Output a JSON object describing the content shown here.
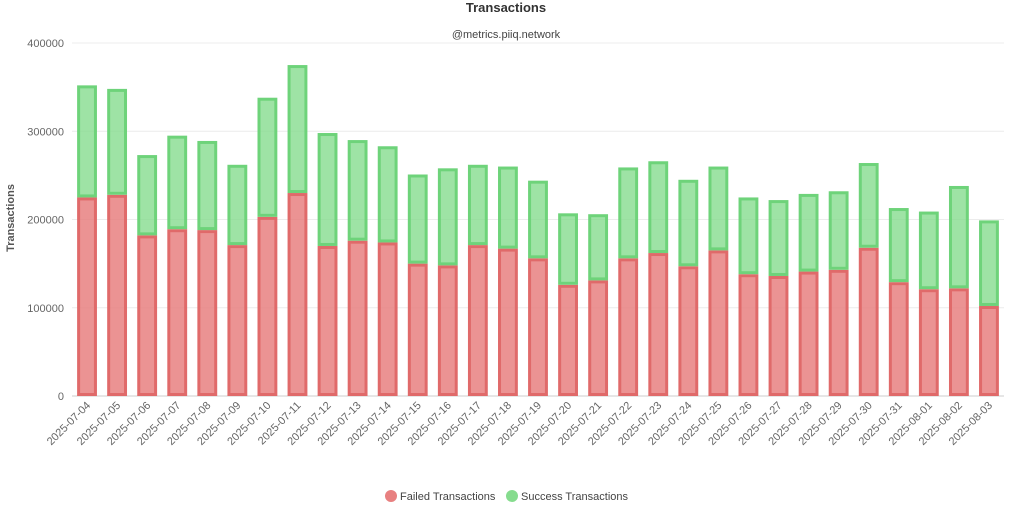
{
  "chart_data": {
    "type": "bar",
    "stacked": true,
    "title": "Transactions",
    "subtitle": "@metrics.piiq.network",
    "xlabel": "",
    "ylabel": "Transactions",
    "ylim": [
      0,
      400000
    ],
    "yticks": [
      0,
      100000,
      200000,
      300000,
      400000
    ],
    "grid": true,
    "legend_position": "bottom-center",
    "categories": [
      "2025-07-04",
      "2025-07-05",
      "2025-07-06",
      "2025-07-07",
      "2025-07-08",
      "2025-07-09",
      "2025-07-10",
      "2025-07-11",
      "2025-07-12",
      "2025-07-13",
      "2025-07-14",
      "2025-07-15",
      "2025-07-16",
      "2025-07-17",
      "2025-07-18",
      "2025-07-19",
      "2025-07-20",
      "2025-07-21",
      "2025-07-22",
      "2025-07-23",
      "2025-07-24",
      "2025-07-25",
      "2025-07-26",
      "2025-07-27",
      "2025-07-28",
      "2025-07-29",
      "2025-07-30",
      "2025-07-31",
      "2025-08-01",
      "2025-08-02",
      "2025-08-03"
    ],
    "series": [
      {
        "name": "Failed Transactions",
        "color": "#e88080",
        "values": [
          225000,
          228000,
          182000,
          189000,
          188000,
          171000,
          203000,
          230000,
          170000,
          176000,
          174000,
          150000,
          148000,
          171000,
          167000,
          156000,
          126000,
          131000,
          156000,
          162000,
          147000,
          165000,
          138000,
          136000,
          141000,
          143000,
          168000,
          129000,
          121000,
          122000,
          102000
        ]
      },
      {
        "name": "Success Transactions",
        "color": "#86dc8e",
        "values": [
          127000,
          120000,
          91000,
          106000,
          101000,
          91000,
          135000,
          145000,
          128000,
          114000,
          109000,
          101000,
          110000,
          91000,
          93000,
          88000,
          81000,
          75000,
          103000,
          104000,
          98000,
          95000,
          87000,
          86000,
          88000,
          89000,
          96000,
          84000,
          88000,
          116000,
          97000
        ]
      }
    ]
  }
}
